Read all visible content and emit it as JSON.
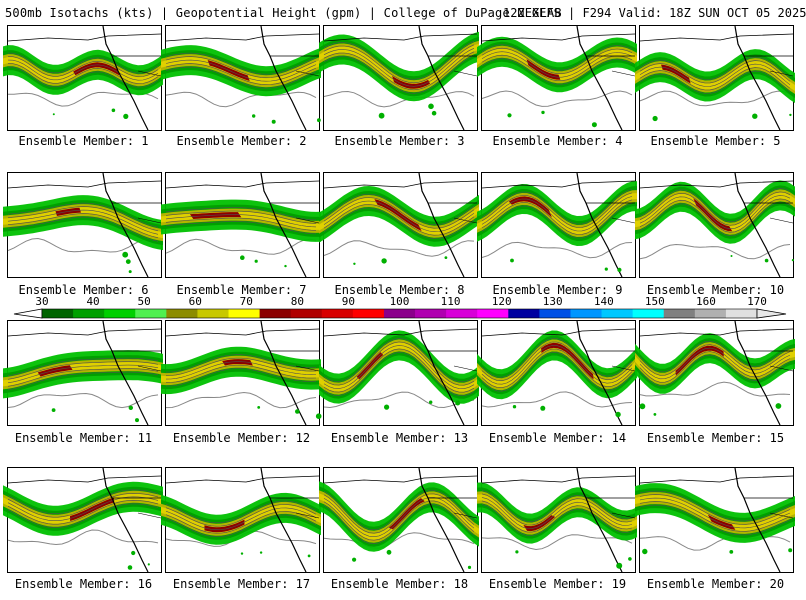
{
  "header": {
    "left": "500mb Isotachs (kts) | Geopotential Height (gpm) | College of DuPage NEXLAB",
    "right": "12Z GEFS | F294 Valid: 18Z SUN OCT 05 2025"
  },
  "colorbar": {
    "ticks": [
      "30",
      "40",
      "50",
      "60",
      "70",
      "80",
      "90",
      "100",
      "110",
      "120",
      "130",
      "140",
      "150",
      "160",
      "170"
    ],
    "colors": [
      "#006400",
      "#00a000",
      "#00d000",
      "#50f050",
      "#8c8c00",
      "#c8c800",
      "#ffff00",
      "#8b0000",
      "#b00000",
      "#d80000",
      "#ff0000",
      "#8b008b",
      "#b000b0",
      "#d800d8",
      "#ff00ff",
      "#0000a0",
      "#0050e6",
      "#0096ff",
      "#00c8ff",
      "#00ffff",
      "#808080",
      "#b0b0b0",
      "#e0e0e0"
    ]
  },
  "panels": [
    {
      "caption": "Ensemble Member: 1",
      "seed": 1
    },
    {
      "caption": "Ensemble Member: 2",
      "seed": 2
    },
    {
      "caption": "Ensemble Member: 3",
      "seed": 3
    },
    {
      "caption": "Ensemble Member: 4",
      "seed": 4
    },
    {
      "caption": "Ensemble Member: 5",
      "seed": 5
    },
    {
      "caption": "Ensemble Member: 6",
      "seed": 6
    },
    {
      "caption": "Ensemble Member: 7",
      "seed": 7
    },
    {
      "caption": "Ensemble Member: 8",
      "seed": 8
    },
    {
      "caption": "Ensemble Member: 9",
      "seed": 9
    },
    {
      "caption": "Ensemble Member: 10",
      "seed": 10
    },
    {
      "caption": "Ensemble Member: 11",
      "seed": 11
    },
    {
      "caption": "Ensemble Member: 12",
      "seed": 12
    },
    {
      "caption": "Ensemble Member: 13",
      "seed": 13
    },
    {
      "caption": "Ensemble Member: 14",
      "seed": 14
    },
    {
      "caption": "Ensemble Member: 15",
      "seed": 15
    },
    {
      "caption": "Ensemble Member: 16",
      "seed": 16
    },
    {
      "caption": "Ensemble Member: 17",
      "seed": 17
    },
    {
      "caption": "Ensemble Member: 18",
      "seed": 18
    },
    {
      "caption": "Ensemble Member: 19",
      "seed": 19
    },
    {
      "caption": "Ensemble Member: 20",
      "seed": 20
    }
  ]
}
